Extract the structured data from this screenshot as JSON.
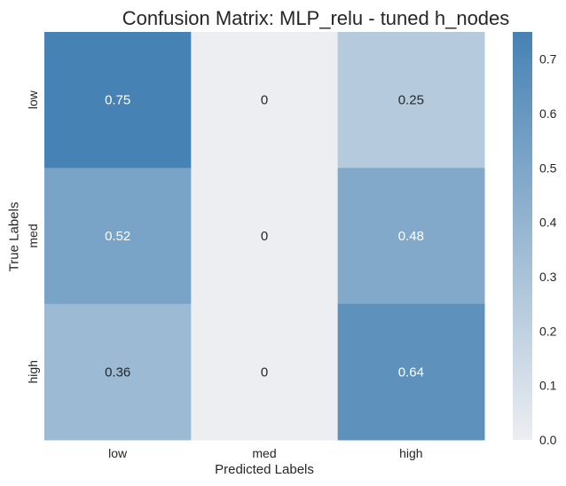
{
  "chart_data": {
    "type": "heatmap",
    "title": "Confusion Matrix: MLP_relu - tuned h_nodes",
    "xlabel": "Predicted Labels",
    "ylabel": "True Labels",
    "x_categories": [
      "low",
      "med",
      "high"
    ],
    "y_categories": [
      "low",
      "med",
      "high"
    ],
    "values": [
      [
        0.75,
        0,
        0.25
      ],
      [
        0.52,
        0,
        0.48
      ],
      [
        0.36,
        0,
        0.64
      ]
    ],
    "value_labels": [
      [
        "0.75",
        "0",
        "0.25"
      ],
      [
        "0.52",
        "0",
        "0.48"
      ],
      [
        "0.36",
        "0",
        "0.64"
      ]
    ],
    "colorbar": {
      "range": [
        0.0,
        0.75
      ],
      "ticks": [
        0.0,
        0.1,
        0.2,
        0.3,
        0.4,
        0.5,
        0.6,
        0.7
      ],
      "tick_labels": [
        "0.0",
        "0.1",
        "0.2",
        "0.3",
        "0.4",
        "0.5",
        "0.6",
        "0.7"
      ],
      "color_low": "#eceef1",
      "color_high": "#4682b4"
    },
    "annotation_colors": {
      "dark": "#262626",
      "light": "#ffffff"
    }
  }
}
